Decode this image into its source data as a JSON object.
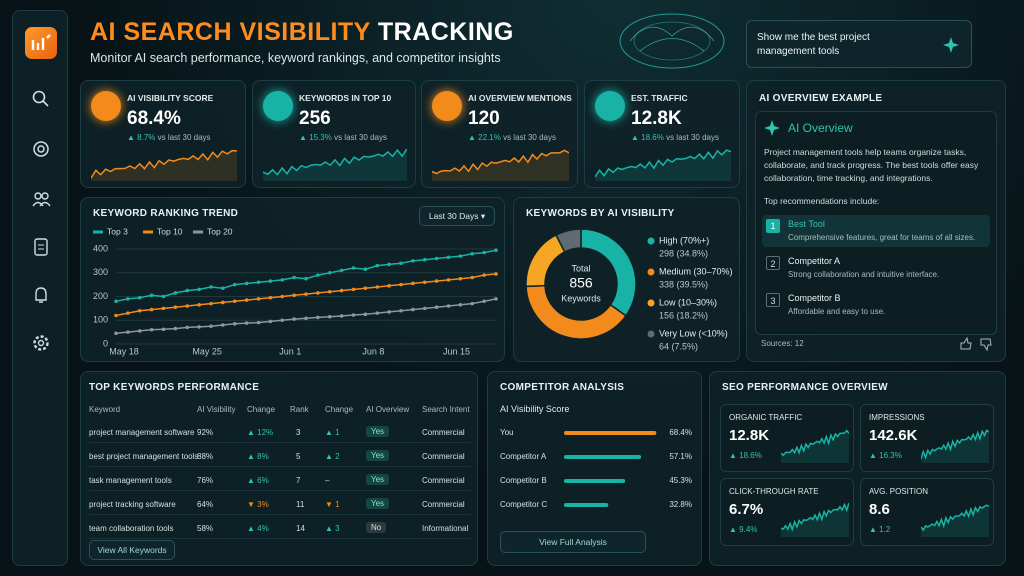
{
  "header": {
    "title_highlight": "AI SEARCH VISIBILITY",
    "title_rest": "TRACKING",
    "subtitle": "Monitor AI search performance, keyword rankings, and competitor insights",
    "query": "Show me the best project management tools"
  },
  "kpis": [
    {
      "label": "AI VISIBILITY SCORE",
      "value": "68.4%",
      "change": "▲ 8.7%",
      "note": "vs last 30 days"
    },
    {
      "label": "KEYWORDS IN TOP 10",
      "value": "256",
      "change": "▲ 15.3%",
      "note": "vs last 30 days"
    },
    {
      "label": "AI OVERVIEW MENTIONS",
      "value": "120",
      "change": "▲ 22.1%",
      "note": "vs last 30 days"
    },
    {
      "label": "EST. TRAFFIC",
      "value": "12.8K",
      "change": "▲ 18.6%",
      "note": "vs last 30 days"
    }
  ],
  "ranking_trend": {
    "type": "line",
    "title": "KEYWORD RANKING TREND",
    "period": "Last 30 Days",
    "categories": [
      "May 18",
      null,
      null,
      null,
      null,
      null,
      null,
      "May 25",
      null,
      null,
      null,
      null,
      null,
      null,
      "Jun 1",
      null,
      null,
      null,
      null,
      null,
      null,
      "Jun 8",
      null,
      null,
      null,
      null,
      null,
      null,
      "Jun 15",
      null,
      null,
      null,
      null
    ],
    "series": [
      {
        "name": "Top 3",
        "color": "#19b3a6",
        "values": [
          180,
          190,
          195,
          205,
          200,
          215,
          225,
          230,
          240,
          235,
          250,
          255,
          260,
          265,
          270,
          280,
          275,
          290,
          300,
          310,
          320,
          315,
          330,
          335,
          340,
          350,
          355,
          360,
          365,
          370,
          380,
          385,
          395
        ]
      },
      {
        "name": "Top 10",
        "color": "#f28a1c",
        "values": [
          120,
          130,
          140,
          145,
          150,
          155,
          160,
          165,
          170,
          175,
          180,
          185,
          190,
          195,
          200,
          205,
          210,
          215,
          220,
          225,
          230,
          235,
          240,
          245,
          250,
          255,
          260,
          265,
          270,
          275,
          280,
          290,
          295
        ]
      },
      {
        "name": "Top 20",
        "color": "#8d9899",
        "values": [
          45,
          50,
          55,
          60,
          62,
          65,
          70,
          72,
          75,
          80,
          85,
          88,
          90,
          95,
          100,
          105,
          108,
          112,
          115,
          118,
          122,
          125,
          130,
          135,
          140,
          145,
          150,
          155,
          160,
          165,
          170,
          180,
          190
        ]
      }
    ],
    "ylim": [
      0,
      400
    ],
    "yticks": [
      0,
      100,
      200,
      300,
      400
    ],
    "grid": true
  },
  "ai_visibility": {
    "type": "pie",
    "title": "KEYWORDS BY AI VISIBILITY",
    "center_label": "Total",
    "center_value": 856,
    "center_unit": "Keywords",
    "categories": [
      "High (70%+)",
      "Medium (30–70%)",
      "Low (10–30%)",
      "Very Low (<10%)"
    ],
    "values": [
      34.8,
      39.5,
      18.2,
      7.5
    ],
    "value_labels": [
      "298 (34.8%)",
      "338 (39.5%)",
      "156 (18.2%)",
      "64 (7.5%)"
    ],
    "colors": [
      "#19b3a6",
      "#f28a1c",
      "#f5a623",
      "#5f6b6e"
    ]
  },
  "ai_overview": {
    "title": "AI OVERVIEW EXAMPLE",
    "heading": "AI Overview",
    "body": "Project management tools help teams organize tasks, collaborate, and track progress. The best tools offer easy collaboration, time tracking, and integrations.",
    "subheading": "Top recommendations include:",
    "items": [
      {
        "number": 1,
        "title": "Best Tool",
        "desc": "Comprehensive features, great for teams of all sizes."
      },
      {
        "number": 2,
        "title": "Competitor A",
        "desc": "Strong collaboration and intuitive interface."
      },
      {
        "number": 3,
        "title": "Competitor B",
        "desc": "Affordable and easy to use."
      }
    ],
    "sources": "Sources: 12"
  },
  "top_keywords": {
    "title": "TOP KEYWORDS PERFORMANCE",
    "columns": [
      "Keyword",
      "AI Visibility",
      "Change",
      "Rank",
      "Change",
      "AI Overview",
      "Search Intent"
    ],
    "rows": [
      [
        "project management software",
        "92%",
        "▲ 12%",
        3,
        "▲ 1",
        "Yes",
        "Commercial"
      ],
      [
        "best project management tools",
        "88%",
        "▲ 8%",
        5,
        "▲ 2",
        "Yes",
        "Commercial"
      ],
      [
        "task management tools",
        "76%",
        "▲ 6%",
        7,
        "–",
        "Yes",
        "Commercial"
      ],
      [
        "project tracking software",
        "64%",
        "▼ 3%",
        11,
        "▼ 1",
        "Yes",
        "Commercial"
      ],
      [
        "team collaboration tools",
        "58%",
        "▲ 4%",
        14,
        "▲ 3",
        "No",
        "Informational"
      ]
    ],
    "button": "View All Keywords"
  },
  "competitor": {
    "type": "bar",
    "title": "COMPETITOR ANALYSIS",
    "subtitle": "AI Visibility Score",
    "categories": [
      "You",
      "Competitor A",
      "Competitor B",
      "Competitor C"
    ],
    "values": [
      68.4,
      57.1,
      45.3,
      32.8
    ],
    "value_labels": [
      "68.4%",
      "57.1%",
      "45.3%",
      "32.8%"
    ],
    "colors": [
      "#f28a1c",
      "#19b3a6",
      "#19b3a6",
      "#19b3a6"
    ],
    "xlim": [
      0,
      100
    ],
    "button": "View Full Analysis"
  },
  "seo": {
    "title": "SEO PERFORMANCE OVERVIEW",
    "cards": [
      {
        "label": "ORGANIC TRAFFIC",
        "value": "12.8K",
        "change": "▲ 18.6%"
      },
      {
        "label": "IMPRESSIONS",
        "value": "142.6K",
        "change": "▲ 16.3%"
      },
      {
        "label": "CLICK-THROUGH RATE",
        "value": "6.7%",
        "change": "▲ 9.4%"
      },
      {
        "label": "AVG. POSITION",
        "value": "8.6",
        "change": "▲ 1.2"
      }
    ]
  }
}
